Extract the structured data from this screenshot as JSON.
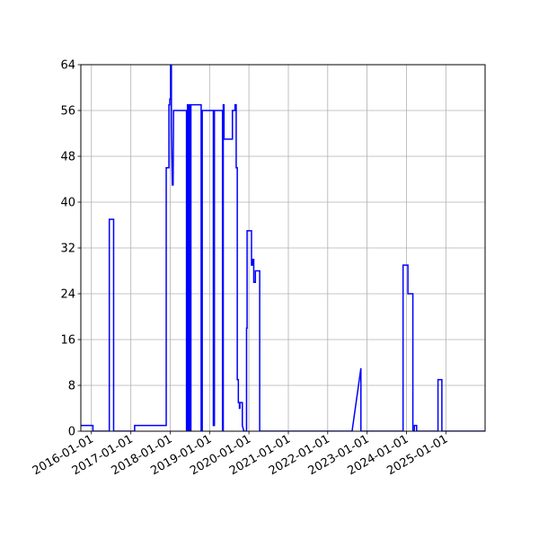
{
  "chart_data": {
    "type": "line",
    "title": "",
    "xlabel": "",
    "ylabel": "",
    "grid": true,
    "line_color": "#0000ff",
    "x_axis": {
      "type": "date",
      "range": [
        "2015-09-25",
        "2025-12-31"
      ],
      "ticks": [
        "2016-01-01",
        "2017-01-01",
        "2018-01-01",
        "2019-01-01",
        "2020-01-01",
        "2021-01-01",
        "2022-01-01",
        "2023-01-01",
        "2024-01-01",
        "2025-01-01"
      ],
      "tick_labels": [
        "2016-01-01",
        "2017-01-01",
        "2018-01-01",
        "2019-01-01",
        "2020-01-01",
        "2021-01-01",
        "2022-01-01",
        "2023-01-01",
        "2024-01-01",
        "2025-01-01"
      ]
    },
    "y_axis": {
      "range": [
        0,
        64
      ],
      "ticks": [
        0,
        8,
        16,
        24,
        32,
        40,
        48,
        56,
        64
      ],
      "tick_labels": [
        "0",
        "8",
        "16",
        "24",
        "32",
        "40",
        "48",
        "56",
        "64"
      ]
    },
    "series": [
      {
        "points": [
          [
            "2015-09-25",
            1
          ],
          [
            "2016-01-15",
            1
          ],
          [
            "2016-01-15",
            0
          ],
          [
            "2016-06-15",
            0
          ],
          [
            "2016-06-15",
            37
          ],
          [
            "2016-07-25",
            37
          ],
          [
            "2016-07-25",
            0
          ],
          [
            "2017-02-05",
            0
          ],
          [
            "2017-02-05",
            1
          ],
          [
            "2017-11-25",
            1
          ],
          [
            "2017-11-25",
            46
          ],
          [
            "2017-12-20",
            46
          ],
          [
            "2017-12-20",
            57
          ],
          [
            "2017-12-28",
            57
          ],
          [
            "2017-12-28",
            58
          ],
          [
            "2018-01-05",
            58
          ],
          [
            "2018-01-05",
            64
          ],
          [
            "2018-01-12",
            64
          ],
          [
            "2018-01-12",
            53
          ],
          [
            "2018-01-20",
            43
          ],
          [
            "2018-01-28",
            43
          ],
          [
            "2018-02-01",
            56
          ],
          [
            "2018-06-01",
            56
          ],
          [
            "2018-06-01",
            0
          ],
          [
            "2018-06-10",
            0
          ],
          [
            "2018-06-10",
            57
          ],
          [
            "2018-06-20",
            57
          ],
          [
            "2018-06-20",
            0
          ],
          [
            "2018-06-28",
            0
          ],
          [
            "2018-06-28",
            57
          ],
          [
            "2018-07-05",
            57
          ],
          [
            "2018-07-05",
            0
          ],
          [
            "2018-07-12",
            0
          ],
          [
            "2018-07-12",
            57
          ],
          [
            "2018-10-15",
            57
          ],
          [
            "2018-10-15",
            0
          ],
          [
            "2018-10-25",
            0
          ],
          [
            "2018-10-25",
            56
          ],
          [
            "2019-02-05",
            56
          ],
          [
            "2019-02-05",
            1
          ],
          [
            "2019-02-15",
            1
          ],
          [
            "2019-02-15",
            56
          ],
          [
            "2019-05-01",
            56
          ],
          [
            "2019-05-01",
            0
          ],
          [
            "2019-05-08",
            0
          ],
          [
            "2019-05-08",
            57
          ],
          [
            "2019-05-15",
            57
          ],
          [
            "2019-05-15",
            51
          ],
          [
            "2019-08-01",
            51
          ],
          [
            "2019-08-01",
            56
          ],
          [
            "2019-08-25",
            56
          ],
          [
            "2019-08-25",
            57
          ],
          [
            "2019-09-05",
            57
          ],
          [
            "2019-09-05",
            46
          ],
          [
            "2019-09-15",
            46
          ],
          [
            "2019-09-15",
            9
          ],
          [
            "2019-09-25",
            9
          ],
          [
            "2019-09-25",
            5
          ],
          [
            "2019-10-05",
            5
          ],
          [
            "2019-10-05",
            4
          ],
          [
            "2019-10-10",
            4
          ],
          [
            "2019-10-10",
            5
          ],
          [
            "2019-11-01",
            5
          ],
          [
            "2019-11-01",
            1
          ],
          [
            "2019-11-15",
            0
          ],
          [
            "2019-12-10",
            0
          ],
          [
            "2019-12-10",
            18
          ],
          [
            "2019-12-15",
            18
          ],
          [
            "2019-12-15",
            35
          ],
          [
            "2020-01-25",
            35
          ],
          [
            "2020-01-25",
            29
          ],
          [
            "2020-02-05",
            29
          ],
          [
            "2020-02-05",
            30
          ],
          [
            "2020-02-15",
            30
          ],
          [
            "2020-02-15",
            26
          ],
          [
            "2020-03-01",
            26
          ],
          [
            "2020-03-01",
            28
          ],
          [
            "2020-04-10",
            28
          ],
          [
            "2020-04-10",
            0
          ],
          [
            "2022-08-15",
            0
          ],
          [
            "2022-11-05",
            11
          ],
          [
            "2022-11-05",
            0
          ],
          [
            "2023-12-01",
            0
          ],
          [
            "2023-12-01",
            29
          ],
          [
            "2024-01-15",
            29
          ],
          [
            "2024-01-15",
            24
          ],
          [
            "2024-03-01",
            24
          ],
          [
            "2024-03-01",
            0
          ],
          [
            "2024-03-15",
            0
          ],
          [
            "2024-03-15",
            1
          ],
          [
            "2024-04-05",
            1
          ],
          [
            "2024-04-05",
            0
          ],
          [
            "2024-10-20",
            0
          ],
          [
            "2024-10-20",
            9
          ],
          [
            "2024-11-25",
            9
          ],
          [
            "2024-11-25",
            0
          ],
          [
            "2025-12-31",
            0
          ]
        ]
      }
    ]
  }
}
